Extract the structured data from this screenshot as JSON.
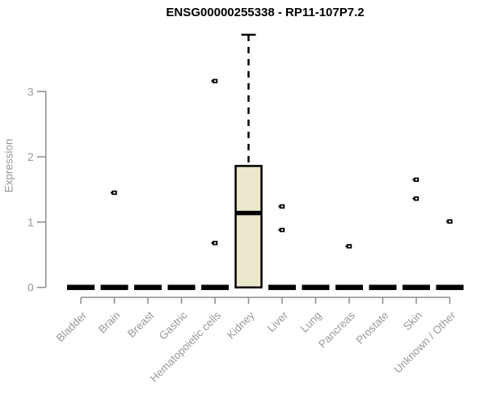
{
  "title": "ENSG00000255338 - RP11-107P7.2",
  "chart_data": {
    "type": "boxplot",
    "title": "ENSG00000255338 - RP11-107P7.2",
    "xlabel": "",
    "ylabel": "Expression",
    "ylim": [
      0,
      3.95
    ],
    "yticks": [
      0,
      1,
      2,
      3
    ],
    "grid": false,
    "legend": "none",
    "colors": {
      "box_fill": "#ece8cd",
      "box_stroke": "#000000",
      "flat_bar": "#000000",
      "outlier": "#000000",
      "axis": "#8c8c8c",
      "tick_text": "#999999",
      "title_text": "#000000"
    },
    "categories": [
      "Bladder",
      "Brain",
      "Breast",
      "Gastric",
      "Hematopoietic cells",
      "Kidney",
      "Liver",
      "Lung",
      "Pancreas",
      "Prostate",
      "Skin",
      "Unknown / Other"
    ],
    "boxes": [
      {
        "category": "Bladder",
        "q1": 0,
        "median": 0,
        "q3": 0,
        "whisker_low": 0,
        "whisker_high": 0,
        "outliers": []
      },
      {
        "category": "Brain",
        "q1": 0,
        "median": 0,
        "q3": 0,
        "whisker_low": 0,
        "whisker_high": 0,
        "outliers": [
          1.45
        ]
      },
      {
        "category": "Breast",
        "q1": 0,
        "median": 0,
        "q3": 0,
        "whisker_low": 0,
        "whisker_high": 0,
        "outliers": []
      },
      {
        "category": "Gastric",
        "q1": 0,
        "median": 0,
        "q3": 0,
        "whisker_low": 0,
        "whisker_high": 0,
        "outliers": []
      },
      {
        "category": "Hematopoietic cells",
        "q1": 0,
        "median": 0,
        "q3": 0,
        "whisker_low": 0,
        "whisker_high": 0,
        "outliers": [
          3.16,
          0.68
        ]
      },
      {
        "category": "Kidney",
        "q1": 0,
        "median": 1.14,
        "q3": 1.86,
        "whisker_low": 0,
        "whisker_high": 3.87,
        "outliers": []
      },
      {
        "category": "Liver",
        "q1": 0,
        "median": 0,
        "q3": 0,
        "whisker_low": 0,
        "whisker_high": 0,
        "outliers": [
          1.24,
          0.88
        ]
      },
      {
        "category": "Lung",
        "q1": 0,
        "median": 0,
        "q3": 0,
        "whisker_low": 0,
        "whisker_high": 0,
        "outliers": []
      },
      {
        "category": "Pancreas",
        "q1": 0,
        "median": 0,
        "q3": 0,
        "whisker_low": 0,
        "whisker_high": 0,
        "outliers": [
          0.63
        ]
      },
      {
        "category": "Prostate",
        "q1": 0,
        "median": 0,
        "q3": 0,
        "whisker_low": 0,
        "whisker_high": 0,
        "outliers": []
      },
      {
        "category": "Skin",
        "q1": 0,
        "median": 0,
        "q3": 0,
        "whisker_low": 0,
        "whisker_high": 0,
        "outliers": [
          1.65,
          1.36
        ]
      },
      {
        "category": "Unknown / Other",
        "q1": 0,
        "median": 0,
        "q3": 0,
        "whisker_low": 0,
        "whisker_high": 0,
        "outliers": [
          1.01
        ]
      }
    ]
  }
}
